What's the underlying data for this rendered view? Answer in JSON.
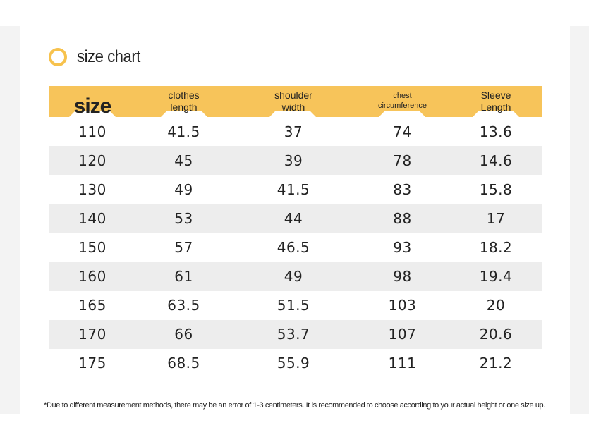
{
  "title": "size chart",
  "icon": "ring-icon",
  "accent_color": "#f7c45a",
  "table": {
    "headers": [
      {
        "line1": "size",
        "line2": ""
      },
      {
        "line1": "clothes",
        "line2": "length"
      },
      {
        "line1": "shoulder",
        "line2": "width"
      },
      {
        "line1": "chest",
        "line2": "circumference"
      },
      {
        "line1": "Sleeve",
        "line2": "Length"
      }
    ],
    "rows": [
      [
        "110",
        "41.5",
        "37",
        "74",
        "13.6"
      ],
      [
        "120",
        "45",
        "39",
        "78",
        "14.6"
      ],
      [
        "130",
        "49",
        "41.5",
        "83",
        "15.8"
      ],
      [
        "140",
        "53",
        "44",
        "88",
        "17"
      ],
      [
        "150",
        "57",
        "46.5",
        "93",
        "18.2"
      ],
      [
        "160",
        "61",
        "49",
        "98",
        "19.4"
      ],
      [
        "165",
        "63.5",
        "51.5",
        "103",
        "20"
      ],
      [
        "170",
        "66",
        "53.7",
        "107",
        "20.6"
      ],
      [
        "175",
        "68.5",
        "55.9",
        "111",
        "21.2"
      ]
    ]
  },
  "footnote": "*Due to different measurement methods, there may be an error of 1-3 centimeters. It is recommended to choose according to your actual height or one size up."
}
